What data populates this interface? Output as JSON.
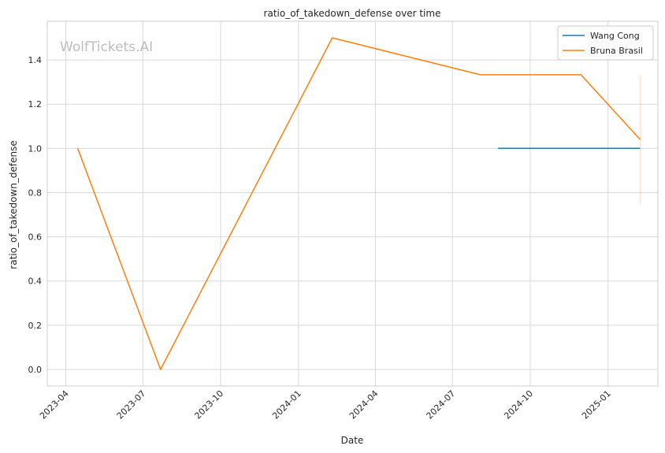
{
  "chart_data": {
    "type": "line",
    "title": "ratio_of_takedown_defense over time",
    "xlabel": "Date",
    "ylabel": "ratio_of_takedown_defense",
    "watermark": "WolfTickets.AI",
    "x_ticks": [
      "2023-04",
      "2023-07",
      "2023-10",
      "2024-01",
      "2024-04",
      "2024-07",
      "2024-10",
      "2025-01"
    ],
    "y_ticks": [
      "0.0",
      "0.2",
      "0.4",
      "0.6",
      "0.8",
      "1.0",
      "1.2",
      "1.4"
    ],
    "xlim": [
      "2023-03-10",
      "2025-03-01"
    ],
    "ylim": [
      -0.075,
      1.575
    ],
    "grid": true,
    "legend_position": "top-right",
    "series": [
      {
        "name": "Wang Cong",
        "color": "#1f77b4",
        "points": [
          {
            "x": "2024-08-24",
            "y": 1.0
          },
          {
            "x": "2025-02-08",
            "y": 1.0
          }
        ]
      },
      {
        "name": "Bruna Brasil",
        "color": "#ff7f0e",
        "points": [
          {
            "x": "2023-04-15",
            "y": 1.0
          },
          {
            "x": "2023-07-22",
            "y": 0.0
          },
          {
            "x": "2024-02-10",
            "y": 1.5
          },
          {
            "x": "2024-08-03",
            "y": 1.333
          },
          {
            "x": "2024-11-30",
            "y": 1.333
          },
          {
            "x": "2025-02-08",
            "y": 1.04
          }
        ],
        "error_bar": {
          "x": "2025-02-08",
          "low": 0.75,
          "high": 1.333
        }
      }
    ]
  }
}
